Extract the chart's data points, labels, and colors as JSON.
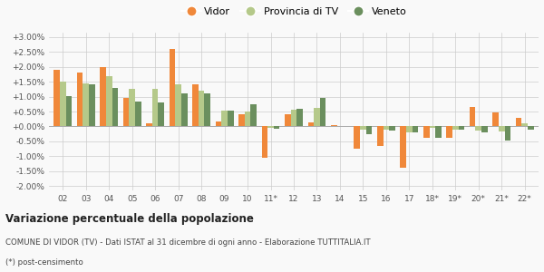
{
  "categories": [
    "02",
    "03",
    "04",
    "05",
    "06",
    "07",
    "08",
    "09",
    "10",
    "11*",
    "12",
    "13",
    "14",
    "15",
    "16",
    "17",
    "18*",
    "19*",
    "20*",
    "21*",
    "22*"
  ],
  "vidor": [
    1.9,
    1.8,
    2.0,
    0.95,
    0.1,
    2.6,
    1.4,
    0.15,
    0.42,
    -1.05,
    0.4,
    0.12,
    0.03,
    -0.75,
    -0.65,
    -1.4,
    -0.38,
    -0.38,
    0.65,
    0.48,
    0.28
  ],
  "provincia": [
    1.5,
    1.45,
    1.7,
    1.27,
    1.27,
    1.42,
    1.2,
    0.52,
    0.5,
    -0.05,
    0.57,
    0.62,
    0.02,
    -0.1,
    -0.1,
    -0.2,
    -0.05,
    -0.1,
    -0.15,
    -0.17,
    0.1
  ],
  "veneto": [
    1.02,
    1.4,
    1.3,
    0.82,
    0.8,
    1.1,
    1.1,
    0.52,
    0.75,
    -0.08,
    0.6,
    0.95,
    0.02,
    -0.25,
    -0.15,
    -0.2,
    -0.38,
    -0.1,
    -0.2,
    -0.47,
    -0.1
  ],
  "color_vidor": "#f0883a",
  "color_provincia": "#b5c98a",
  "color_veneto": "#6b8f5e",
  "title": "Variazione percentuale della popolazione",
  "subtitle": "COMUNE DI VIDOR (TV) - Dati ISTAT al 31 dicembre di ogni anno - Elaborazione TUTTITALIA.IT",
  "footnote": "(*) post-censimento",
  "ylim": [
    -2.0,
    3.0
  ],
  "yticks": [
    -2.0,
    -1.5,
    -1.0,
    -0.5,
    0.0,
    0.5,
    1.0,
    1.5,
    2.0,
    2.5,
    3.0
  ],
  "legend_labels": [
    "Vidor",
    "Provincia di TV",
    "Veneto"
  ],
  "bg_color": "#f9f9f9"
}
